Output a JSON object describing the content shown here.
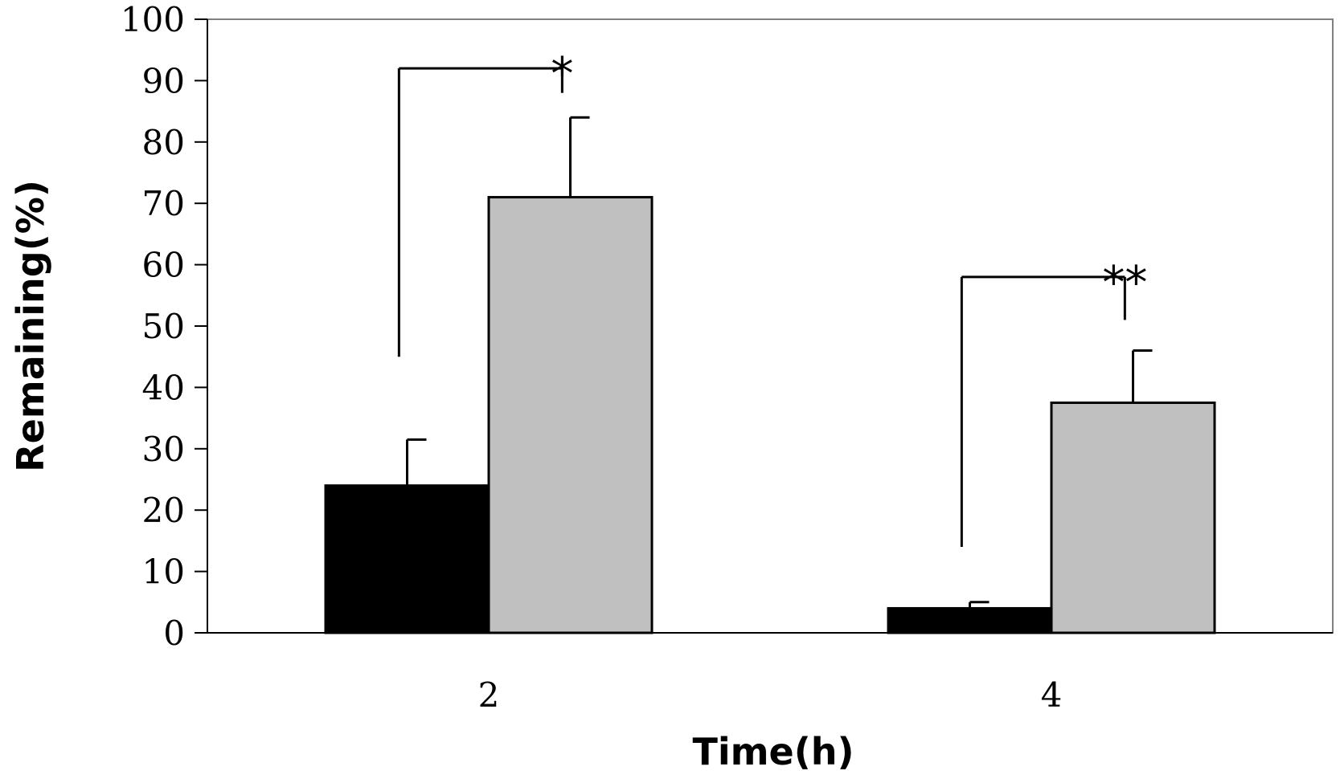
{
  "chart_data": {
    "type": "bar",
    "categories": [
      "2",
      "4"
    ],
    "series": [
      {
        "color": "#000000",
        "values": [
          24,
          4
        ],
        "errors": [
          7.5,
          1
        ]
      },
      {
        "color": "#c0c0c0",
        "values": [
          71,
          37.5
        ],
        "errors": [
          13,
          8.5
        ]
      }
    ],
    "xlabel": "Time(h)",
    "ylabel": "Remaining(%)",
    "ylim": [
      0,
      100
    ],
    "yticks": [
      0,
      10,
      20,
      30,
      40,
      50,
      60,
      70,
      80,
      90,
      100
    ],
    "grid": false,
    "legend": "none",
    "significance": [
      {
        "category": 0,
        "label": "*",
        "left_end": 45,
        "right_end": 88,
        "bracket": 92
      },
      {
        "category": 1,
        "label": "**",
        "left_end": 14,
        "right_end": 51,
        "bracket": 58
      }
    ]
  }
}
